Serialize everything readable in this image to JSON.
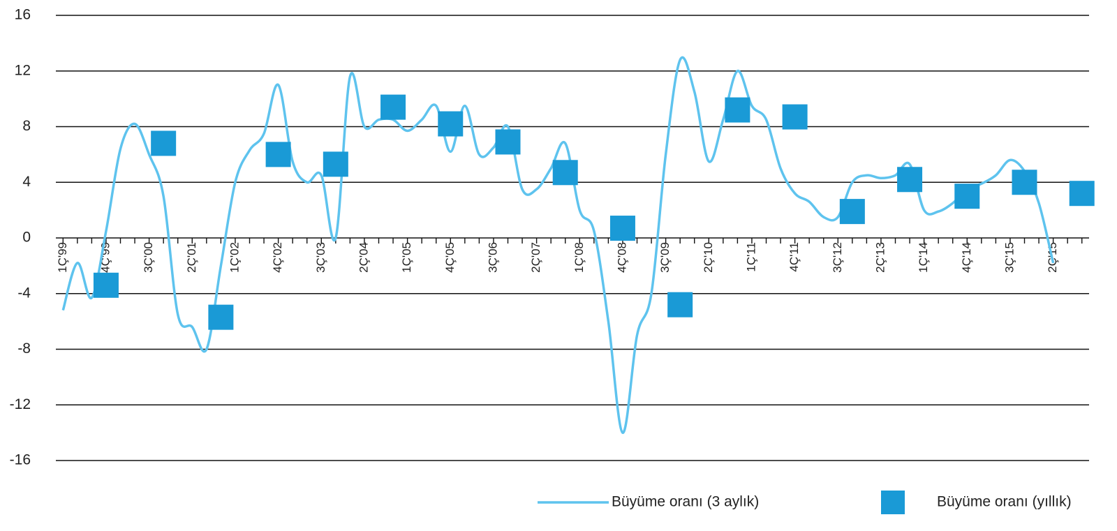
{
  "chart_data": {
    "type": "line",
    "categories": [
      "1Ç'99",
      null,
      null,
      "4Ç'99",
      null,
      null,
      "3Ç'00",
      null,
      null,
      "2Ç'01",
      null,
      null,
      "1Ç'02",
      null,
      null,
      "4Ç'02",
      null,
      null,
      "3Ç'03",
      null,
      null,
      "2Ç'04",
      null,
      null,
      "1Ç'05",
      null,
      null,
      "4Ç'05",
      null,
      null,
      "3Ç'06",
      null,
      null,
      "2Ç'07",
      null,
      null,
      "1Ç'08",
      null,
      null,
      "4Ç'08",
      null,
      null,
      "3Ç'09",
      null,
      null,
      "2Ç'10",
      null,
      null,
      "1Ç'11",
      null,
      null,
      "4Ç'11",
      null,
      null,
      "3Ç'12",
      null,
      null,
      "2Ç'13",
      null,
      null,
      "1Ç'14",
      null,
      null,
      "4Ç'14",
      null,
      null,
      "3Ç'15",
      null,
      null,
      "2Ç'15",
      null,
      null
    ],
    "series": [
      {
        "name": "Büyüme oranı (3 aylık)",
        "color": "#5ec3ee",
        "style": "line",
        "values": [
          -5.2,
          -1.8,
          -4.3,
          0.5,
          6.4,
          8.2,
          6.0,
          3.0,
          -5.5,
          -6.4,
          -8.0,
          -2.0,
          4.0,
          6.3,
          7.5,
          11.0,
          5.5,
          4.0,
          4.5,
          0,
          11.6,
          8.0,
          8.5,
          8.5,
          7.7,
          8.5,
          9.5,
          6.2,
          9.5,
          6.0,
          6.5,
          8.0,
          3.5,
          3.5,
          5.0,
          6.8,
          2.0,
          0.5,
          -6.0,
          -14.0,
          -7.0,
          -4.0,
          6.0,
          12.8,
          10.5,
          5.5,
          8.5,
          12.0,
          9.5,
          8.5,
          5.0,
          3.2,
          2.6,
          1.5,
          1.5,
          4.0,
          4.5,
          4.3,
          4.5,
          5.3,
          2.0,
          1.9,
          2.5,
          3.5,
          3.9,
          4.5,
          5.6,
          4.8,
          2.5,
          -1.8,
          null,
          null
        ]
      },
      {
        "name": "Büyüme oranı (yıllık)",
        "color": "#1a9ad6",
        "style": "square",
        "values": [
          null,
          null,
          null,
          -3.4,
          null,
          null,
          null,
          6.8,
          null,
          null,
          null,
          -5.7,
          null,
          null,
          null,
          6.0,
          null,
          null,
          null,
          5.3,
          null,
          null,
          null,
          9.4,
          null,
          null,
          null,
          8.2,
          null,
          null,
          null,
          6.9,
          null,
          null,
          null,
          4.7,
          null,
          null,
          null,
          0.7,
          null,
          null,
          null,
          -4.8,
          null,
          null,
          null,
          9.2,
          null,
          null,
          null,
          8.7,
          null,
          null,
          null,
          1.9,
          null,
          null,
          null,
          4.2,
          null,
          null,
          null,
          3.0,
          null,
          null,
          null,
          4.0,
          null,
          null,
          null,
          3.2
        ]
      }
    ],
    "ylim": [
      -16,
      16
    ],
    "yticks": [
      -16,
      -12,
      -8,
      -4,
      0,
      4,
      8,
      12,
      16
    ],
    "grid": true
  }
}
